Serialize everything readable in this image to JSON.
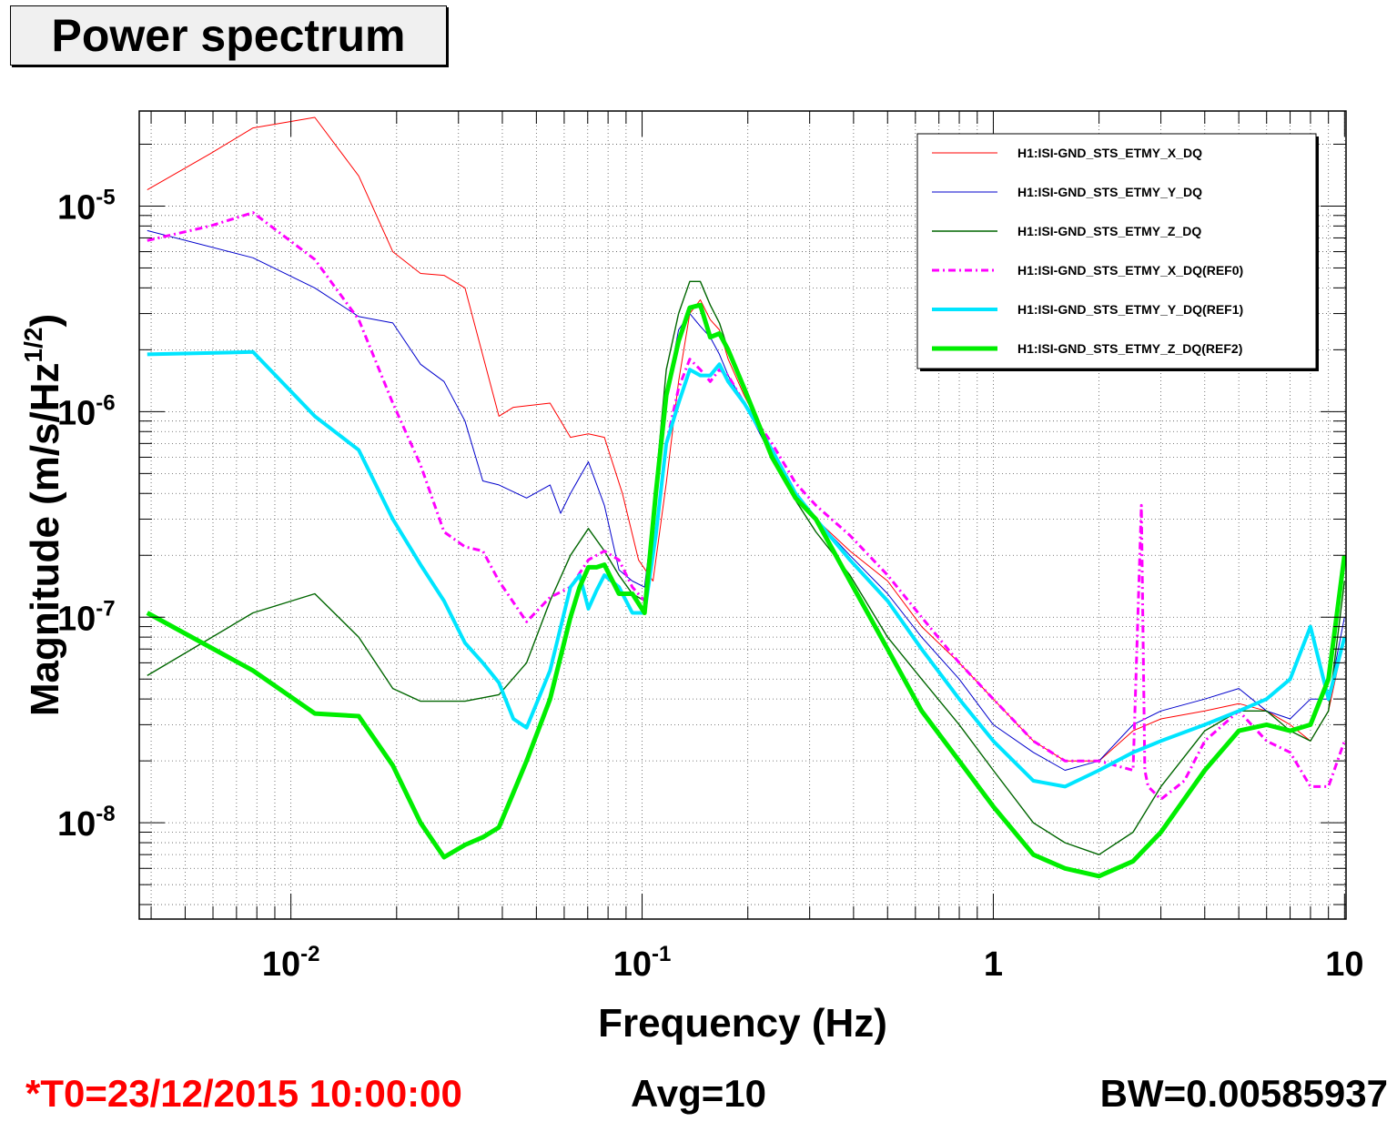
{
  "title": "Power spectrum",
  "footer": {
    "t0": "*T0=23/12/2015 10:00:00",
    "avg": "Avg=10",
    "bw": "BW=0.00585937"
  },
  "colors": {
    "x_dq": "#ff0000",
    "y_dq": "#0000cc",
    "z_dq": "#006600",
    "x_ref0": "#ff00ff",
    "y_ref1": "#00e5ff",
    "z_ref2": "#00ee00"
  },
  "chart_data": {
    "type": "line",
    "xscale": "log",
    "yscale": "log",
    "xlim": [
      0.0037,
      10.1
    ],
    "ylim": [
      3.4e-09,
      2.9e-05
    ],
    "grid": true,
    "legend_position": "top-right",
    "xlabel": "Frequency (Hz)",
    "ylabel": {
      "text": "Magnitude (m/s/Hz",
      "sup": "1/2",
      "tail": ")"
    },
    "x_ticks": [
      {
        "value": 0.01,
        "base": "10",
        "exp": "-2"
      },
      {
        "value": 0.1,
        "base": "10",
        "exp": "-1"
      },
      {
        "value": 1,
        "base": "1",
        "exp": ""
      },
      {
        "value": 10,
        "base": "10",
        "exp": ""
      }
    ],
    "y_ticks": [
      {
        "value": 1e-05,
        "base": "10",
        "exp": "-5"
      },
      {
        "value": 1e-06,
        "base": "10",
        "exp": "-6"
      },
      {
        "value": 1e-07,
        "base": "10",
        "exp": "-7"
      },
      {
        "value": 1e-08,
        "base": "10",
        "exp": "-8"
      }
    ],
    "series": [
      {
        "name": "H1:ISI-GND_STS_ETMY_X_DQ",
        "color": "#ff0000",
        "width": 1,
        "dash": "",
        "x": [
          0.0039,
          0.0059,
          0.0078,
          0.0117,
          0.0156,
          0.0195,
          0.0234,
          0.0273,
          0.0313,
          0.0391,
          0.043,
          0.0547,
          0.0625,
          0.0703,
          0.0781,
          0.0879,
          0.0977,
          0.1074,
          0.1172,
          0.127,
          0.1367,
          0.1465,
          0.1563,
          0.166,
          0.1758,
          0.1953,
          0.2344,
          0.2734,
          0.3125,
          0.3906,
          0.5,
          0.625,
          0.8,
          1.0,
          1.3,
          1.6,
          2.0,
          2.5,
          3.0,
          4.0,
          5.0,
          6.0,
          7.0,
          8.0,
          9.0,
          10.0
        ],
        "y": [
          1.2e-05,
          1.8e-05,
          2.4e-05,
          2.7e-05,
          1.4e-05,
          6e-06,
          4.7e-06,
          4.6e-06,
          4e-06,
          9.5e-07,
          1.05e-06,
          1.1e-06,
          7.5e-07,
          7.8e-07,
          7.5e-07,
          4e-07,
          1.9e-07,
          1.5e-07,
          4.5e-07,
          1.4e-06,
          3e-06,
          3.5e-06,
          2.8e-06,
          2.5e-06,
          1.8e-06,
          1.2e-06,
          6.5e-07,
          4e-07,
          3e-07,
          2.1e-07,
          1.5e-07,
          9e-08,
          6e-08,
          4e-08,
          2.5e-08,
          2e-08,
          2e-08,
          2.8e-08,
          3.2e-08,
          3.5e-08,
          3.8e-08,
          3.5e-08,
          3e-08,
          2.5e-08,
          3.5e-08,
          8e-08
        ]
      },
      {
        "name": "H1:ISI-GND_STS_ETMY_Y_DQ",
        "color": "#0000cc",
        "width": 1,
        "dash": "",
        "x": [
          0.0039,
          0.0078,
          0.0117,
          0.0156,
          0.0195,
          0.0234,
          0.0273,
          0.0313,
          0.0352,
          0.0391,
          0.0469,
          0.0547,
          0.0586,
          0.0625,
          0.0703,
          0.0781,
          0.0859,
          0.0938,
          0.1016,
          0.1094,
          0.1172,
          0.127,
          0.1367,
          0.1465,
          0.1563,
          0.166,
          0.1758,
          0.1953,
          0.2344,
          0.2734,
          0.3125,
          0.3906,
          0.5,
          0.625,
          0.8,
          1.0,
          1.3,
          1.6,
          2.0,
          2.5,
          3.0,
          4.0,
          5.0,
          6.0,
          7.0,
          8.0,
          9.0,
          10.0
        ],
        "y": [
          7.6e-06,
          5.6e-06,
          4e-06,
          2.9e-06,
          2.7e-06,
          1.7e-06,
          1.4e-06,
          9e-07,
          4.6e-07,
          4.4e-07,
          3.8e-07,
          4.4e-07,
          3.2e-07,
          4e-07,
          5.7e-07,
          3.5e-07,
          1.7e-07,
          1.5e-07,
          1.4e-07,
          4e-07,
          1.2e-06,
          2.5e-06,
          3e-06,
          2.6e-06,
          2.3e-06,
          1.9e-06,
          1.5e-06,
          1.1e-06,
          6e-07,
          3.8e-07,
          3e-07,
          2e-07,
          1.3e-07,
          8e-08,
          5e-08,
          3e-08,
          2.2e-08,
          1.8e-08,
          2e-08,
          3e-08,
          3.5e-08,
          4e-08,
          4.5e-08,
          3.5e-08,
          3.2e-08,
          4e-08,
          4e-08,
          1e-07
        ]
      },
      {
        "name": "H1:ISI-GND_STS_ETMY_Z_DQ",
        "color": "#006600",
        "width": 1.4,
        "dash": "",
        "x": [
          0.0039,
          0.0078,
          0.0117,
          0.0156,
          0.0195,
          0.0234,
          0.0273,
          0.0313,
          0.0391,
          0.0469,
          0.0547,
          0.0625,
          0.0703,
          0.0781,
          0.0859,
          0.0938,
          0.1016,
          0.1094,
          0.1172,
          0.127,
          0.1367,
          0.1465,
          0.1563,
          0.166,
          0.1758,
          0.1953,
          0.2344,
          0.2734,
          0.3125,
          0.3906,
          0.5,
          0.625,
          0.8,
          1.0,
          1.3,
          1.6,
          2.0,
          2.5,
          3.0,
          4.0,
          5.0,
          6.0,
          7.0,
          8.0,
          9.0,
          10.0
        ],
        "y": [
          5.2e-08,
          1.05e-07,
          1.3e-07,
          8e-08,
          4.5e-08,
          3.9e-08,
          3.9e-08,
          3.9e-08,
          4.2e-08,
          6e-08,
          1.2e-07,
          2e-07,
          2.7e-07,
          2.1e-07,
          1.6e-07,
          1.3e-07,
          1.2e-07,
          4.5e-07,
          1.6e-06,
          3e-06,
          4.3e-06,
          4.3e-06,
          3.3e-06,
          2.7e-06,
          2e-06,
          1.3e-06,
          6e-07,
          3.7e-07,
          2.6e-07,
          1.6e-07,
          8e-08,
          5e-08,
          3e-08,
          1.8e-08,
          1e-08,
          8e-09,
          7e-09,
          9e-09,
          1.5e-08,
          2.8e-08,
          3.5e-08,
          3.5e-08,
          2.8e-08,
          2.5e-08,
          3.5e-08,
          1.5e-07
        ]
      },
      {
        "name": "H1:ISI-GND_STS_ETMY_X_DQ(REF0)",
        "color": "#ff00ff",
        "width": 3,
        "dash": "8,4,2,4",
        "x": [
          0.0039,
          0.0059,
          0.0078,
          0.0117,
          0.0156,
          0.0195,
          0.0234,
          0.0273,
          0.0313,
          0.0352,
          0.0391,
          0.0469,
          0.0547,
          0.0625,
          0.0703,
          0.0781,
          0.0859,
          0.0938,
          0.1016,
          0.1094,
          0.1172,
          0.127,
          0.1367,
          0.1465,
          0.1563,
          0.166,
          0.1758,
          0.1953,
          0.2344,
          0.2734,
          0.3125,
          0.3906,
          0.5,
          0.625,
          0.8,
          1.0,
          1.3,
          1.6,
          2.0,
          2.5,
          2.64,
          2.7,
          2.76,
          3.0,
          3.5,
          4.0,
          5.0,
          6.0,
          7.0,
          8.0,
          9.0,
          10.0
        ],
        "y": [
          6.8e-06,
          8e-06,
          9.3e-06,
          5.5e-06,
          2.8e-06,
          1.1e-06,
          5.5e-07,
          2.6e-07,
          2.2e-07,
          2.1e-07,
          1.5e-07,
          9.5e-08,
          1.25e-07,
          1.4e-07,
          1.9e-07,
          2.1e-07,
          1.9e-07,
          1.4e-07,
          1.2e-07,
          2.5e-07,
          7e-07,
          1.3e-06,
          1.8e-06,
          1.6e-06,
          1.4e-06,
          1.6e-06,
          1.5e-06,
          1.1e-06,
          7e-07,
          4.5e-07,
          3.5e-07,
          2.5e-07,
          1.6e-07,
          1e-07,
          6e-08,
          4e-08,
          2.5e-08,
          2e-08,
          2e-08,
          1.8e-08,
          3.5e-07,
          1.8e-08,
          1.5e-08,
          1.3e-08,
          1.6e-08,
          2.5e-08,
          3.5e-08,
          2.5e-08,
          2.2e-08,
          1.5e-08,
          1.5e-08,
          2.5e-08
        ]
      },
      {
        "name": "H1:ISI-GND_STS_ETMY_Y_DQ(REF1)",
        "color": "#00e5ff",
        "width": 4,
        "dash": "",
        "x": [
          0.0039,
          0.0078,
          0.0117,
          0.0156,
          0.0195,
          0.0234,
          0.0273,
          0.0313,
          0.0352,
          0.0391,
          0.043,
          0.0469,
          0.0547,
          0.0625,
          0.0664,
          0.0703,
          0.0742,
          0.0781,
          0.0859,
          0.0938,
          0.1016,
          0.1094,
          0.1172,
          0.127,
          0.1367,
          0.1465,
          0.1563,
          0.166,
          0.1758,
          0.1953,
          0.2344,
          0.2734,
          0.3125,
          0.3906,
          0.5,
          0.625,
          0.8,
          1.0,
          1.3,
          1.6,
          2.0,
          2.5,
          3.0,
          4.0,
          5.0,
          6.0,
          7.0,
          8.0,
          9.0,
          10.0
        ],
        "y": [
          1.9e-06,
          1.95e-06,
          9.5e-07,
          6.5e-07,
          3e-07,
          1.8e-07,
          1.2e-07,
          7.5e-08,
          6e-08,
          4.8e-08,
          3.2e-08,
          2.9e-08,
          5.5e-08,
          1.4e-07,
          1.6e-07,
          1.1e-07,
          1.35e-07,
          1.6e-07,
          1.4e-07,
          1.05e-07,
          1.05e-07,
          2.5e-07,
          7e-07,
          1.1e-06,
          1.6e-06,
          1.5e-06,
          1.5e-06,
          1.7e-06,
          1.4e-06,
          1.1e-06,
          6.5e-07,
          4e-07,
          3e-07,
          1.9e-07,
          1.2e-07,
          7e-08,
          4e-08,
          2.5e-08,
          1.6e-08,
          1.5e-08,
          1.8e-08,
          2.2e-08,
          2.5e-08,
          3e-08,
          3.5e-08,
          4e-08,
          5e-08,
          9e-08,
          4e-08,
          8e-08
        ]
      },
      {
        "name": "H1:ISI-GND_STS_ETMY_Z_DQ(REF2)",
        "color": "#00ee00",
        "width": 5,
        "dash": "",
        "x": [
          0.0039,
          0.0078,
          0.0117,
          0.0156,
          0.0195,
          0.0234,
          0.0273,
          0.0313,
          0.0352,
          0.0391,
          0.043,
          0.0469,
          0.0547,
          0.0625,
          0.0664,
          0.0703,
          0.0742,
          0.0781,
          0.0859,
          0.0938,
          0.1016,
          0.1094,
          0.1172,
          0.127,
          0.1367,
          0.1465,
          0.1563,
          0.166,
          0.1758,
          0.1953,
          0.2344,
          0.2734,
          0.3125,
          0.3906,
          0.5,
          0.625,
          0.8,
          1.0,
          1.3,
          1.6,
          2.0,
          2.5,
          3.0,
          4.0,
          5.0,
          6.0,
          7.0,
          8.0,
          9.0,
          10.0
        ],
        "y": [
          1.05e-07,
          5.5e-08,
          3.4e-08,
          3.3e-08,
          1.9e-08,
          1e-08,
          6.8e-09,
          7.8e-09,
          8.5e-09,
          9.5e-09,
          1.4e-08,
          2e-08,
          4e-08,
          1e-07,
          1.4e-07,
          1.75e-07,
          1.75e-07,
          1.8e-07,
          1.3e-07,
          1.3e-07,
          1.05e-07,
          4e-07,
          1.2e-06,
          2.2e-06,
          3.2e-06,
          3.3e-06,
          2.3e-06,
          2.4e-06,
          2e-06,
          1.3e-06,
          6e-07,
          3.8e-07,
          3e-07,
          1.5e-07,
          7e-08,
          3.5e-08,
          2e-08,
          1.2e-08,
          7e-09,
          6e-09,
          5.5e-09,
          6.5e-09,
          9e-09,
          1.8e-08,
          2.8e-08,
          3e-08,
          2.8e-08,
          3e-08,
          5e-08,
          2e-07
        ]
      }
    ]
  }
}
